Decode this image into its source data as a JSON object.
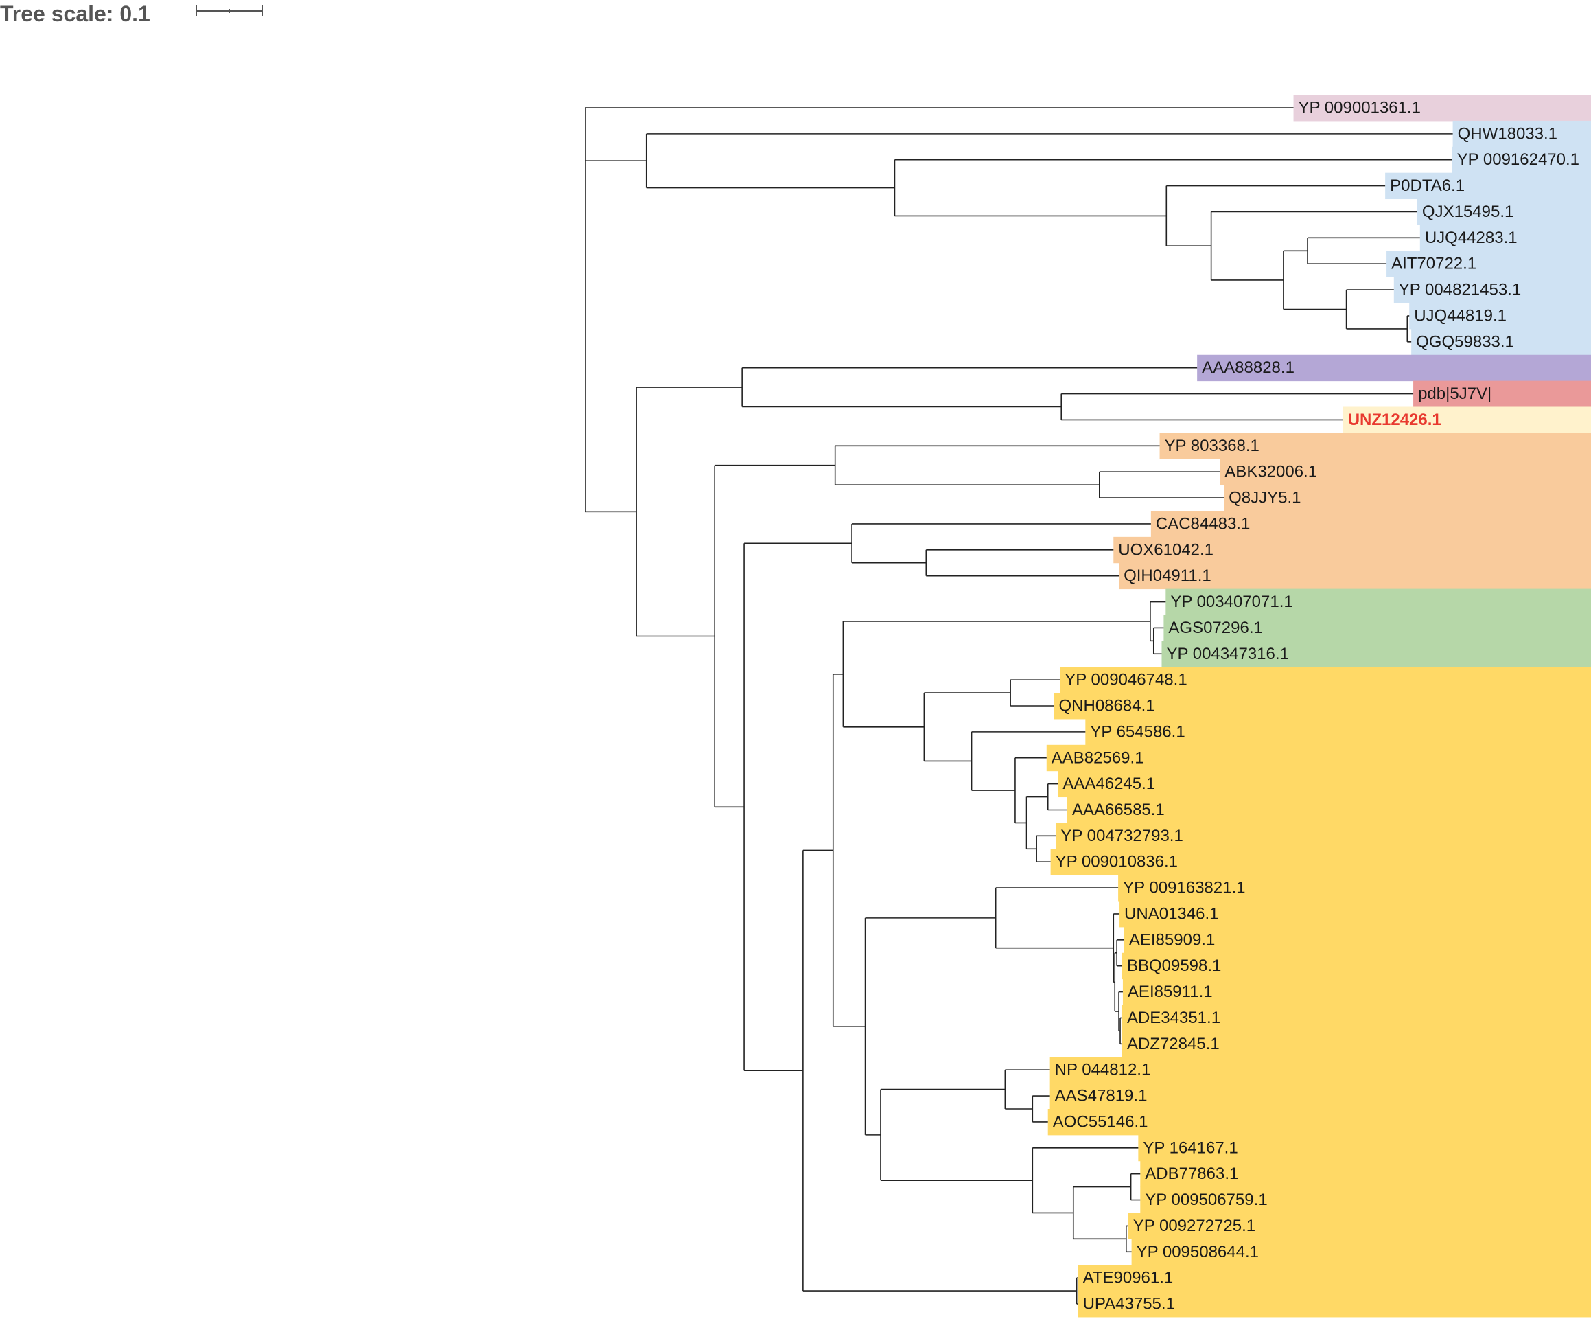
{
  "scale": {
    "label": "Tree scale: 0.1",
    "value": 0.1
  },
  "clade_colors": {
    "pink": "#e8d0dc",
    "blue": "#cfe2f3",
    "purple": "#b4a7d6",
    "red": "#ea9999",
    "cream": "#fff2cc",
    "orange": "#f9cb9c",
    "green": "#b6d7a8",
    "yellow": "#ffd966"
  },
  "highlight_text_color": "#e8392f",
  "leaves": [
    {
      "label": "YP 009001361.1",
      "clade": "pink"
    },
    {
      "label": "QHW18033.1",
      "clade": "blue"
    },
    {
      "label": "YP 009162470.1",
      "clade": "blue"
    },
    {
      "label": "P0DTA6.1",
      "clade": "blue"
    },
    {
      "label": "QJX15495.1",
      "clade": "blue"
    },
    {
      "label": "UJQ44283.1",
      "clade": "blue"
    },
    {
      "label": "AIT70722.1",
      "clade": "blue"
    },
    {
      "label": "YP 004821453.1",
      "clade": "blue"
    },
    {
      "label": "UJQ44819.1",
      "clade": "blue"
    },
    {
      "label": "QGQ59833.1",
      "clade": "blue"
    },
    {
      "label": "AAA88828.1",
      "clade": "purple"
    },
    {
      "label": "pdb|5J7V|",
      "clade": "red"
    },
    {
      "label": "UNZ12426.1",
      "clade": "cream",
      "highlight": true
    },
    {
      "label": "YP 803368.1",
      "clade": "orange"
    },
    {
      "label": "ABK32006.1",
      "clade": "orange"
    },
    {
      "label": "Q8JJY5.1",
      "clade": "orange"
    },
    {
      "label": "CAC84483.1",
      "clade": "orange"
    },
    {
      "label": "UOX61042.1",
      "clade": "orange"
    },
    {
      "label": "QIH04911.1",
      "clade": "orange"
    },
    {
      "label": "YP 003407071.1",
      "clade": "green"
    },
    {
      "label": "AGS07296.1",
      "clade": "green"
    },
    {
      "label": "YP 004347316.1",
      "clade": "green"
    },
    {
      "label": "YP 009046748.1",
      "clade": "yellow"
    },
    {
      "label": "QNH08684.1",
      "clade": "yellow"
    },
    {
      "label": "YP 654586.1",
      "clade": "yellow"
    },
    {
      "label": "AAB82569.1",
      "clade": "yellow"
    },
    {
      "label": "AAA46245.1",
      "clade": "yellow"
    },
    {
      "label": "AAA66585.1",
      "clade": "yellow"
    },
    {
      "label": "YP 004732793.1",
      "clade": "yellow"
    },
    {
      "label": "YP 009010836.1",
      "clade": "yellow"
    },
    {
      "label": "YP 009163821.1",
      "clade": "yellow"
    },
    {
      "label": "UNA01346.1",
      "clade": "yellow"
    },
    {
      "label": "AEI85909.1",
      "clade": "yellow"
    },
    {
      "label": "BBQ09598.1",
      "clade": "yellow"
    },
    {
      "label": "AEI85911.1",
      "clade": "yellow"
    },
    {
      "label": "ADE34351.1",
      "clade": "yellow"
    },
    {
      "label": "ADZ72845.1",
      "clade": "yellow"
    },
    {
      "label": "NP 044812.1",
      "clade": "yellow"
    },
    {
      "label": "AAS47819.1",
      "clade": "yellow"
    },
    {
      "label": "AOC55146.1",
      "clade": "yellow"
    },
    {
      "label": "YP 164167.1",
      "clade": "yellow"
    },
    {
      "label": "ADB77863.1",
      "clade": "yellow"
    },
    {
      "label": "YP 009506759.1",
      "clade": "yellow"
    },
    {
      "label": "YP 009272725.1",
      "clade": "yellow"
    },
    {
      "label": "YP 009508644.1",
      "clade": "yellow"
    },
    {
      "label": "ATE90961.1",
      "clade": "yellow"
    },
    {
      "label": "UPA43755.1",
      "clade": "yellow"
    }
  ],
  "tree": {
    "len": 0,
    "c": [
      {
        "len": 1.058,
        "leaf": 0
      },
      {
        "len": 0.091,
        "c": [
          {
            "len": 1.205,
            "leaf": 1
          },
          {
            "len": 0.371,
            "c": [
              {
                "len": 0.833,
                "leaf": 2
              },
              {
                "len": 0.406,
                "c": [
                  {
                    "len": 0.327,
                    "leaf": 3
                  },
                  {
                    "len": 0.067,
                    "c": [
                      {
                        "len": 0.308,
                        "leaf": 4
                      },
                      {
                        "len": 0.108,
                        "c": [
                          {
                            "len": 0.036,
                            "c": [
                              {
                                "len": 0.168,
                                "leaf": 5
                              },
                              {
                                "len": 0.118,
                                "leaf": 6
                              }
                            ]
                          },
                          {
                            "len": 0.094,
                            "c": [
                              {
                                "len": 0.071,
                                "leaf": 7
                              },
                              {
                                "len": 0.091,
                                "c": [
                                  {
                                    "len": 0.003,
                                    "leaf": 8
                                  },
                                  {
                                    "len": 0.006,
                                    "leaf": 9
                                  }
                                ]
                              }
                            ]
                          }
                        ]
                      }
                    ]
                  }
                ]
              }
            ]
          }
        ]
      },
      {
        "len": 0.076,
        "c": [
          {
            "len": 0.158,
            "c": [
              {
                "len": 0.68,
                "leaf": 10
              },
              {
                "len": 0.477,
                "c": [
                  {
                    "len": 0.526,
                    "leaf": 11
                  },
                  {
                    "len": 0.421,
                    "leaf": 12
                  }
                ]
              }
            ]
          },
          {
            "len": 0.117,
            "c": [
              {
                "len": 0.18,
                "c": [
                  {
                    "len": 0.485,
                    "leaf": 13
                  },
                  {
                    "len": 0.395,
                    "c": [
                      {
                        "len": 0.18,
                        "leaf": 14
                      },
                      {
                        "len": 0.186,
                        "leaf": 15
                      }
                    ]
                  }
                ]
              },
              {
                "len": 0.044,
                "c": [
                  {
                    "len": 0.161,
                    "c": [
                      {
                        "len": 0.447,
                        "leaf": 16
                      },
                      {
                        "len": 0.111,
                        "c": [
                          {
                            "len": 0.28,
                            "leaf": 17
                          },
                          {
                            "len": 0.288,
                            "leaf": 18
                          }
                        ]
                      }
                    ]
                  },
                  {
                    "len": 0.088,
                    "c": [
                      {
                        "len": 0.045,
                        "c": [
                          {
                            "len": 0.015,
                            "c": [
                              {
                                "len": 0.459,
                                "c": [
                                  {
                                    "len": 0.023,
                                    "leaf": 19
                                  },
                                  {
                                    "len": 0.005,
                                    "c": [
                                      {
                                        "len": 0.015,
                                        "leaf": 20
                                      },
                                      {
                                        "len": 0.012,
                                        "leaf": 21
                                      }
                                    ]
                                  }
                                ]
                              },
                              {
                                "len": 0.121,
                                "c": [
                                  {
                                    "len": 0.129,
                                    "c": [
                                      {
                                        "len": 0.074,
                                        "leaf": 22
                                      },
                                      {
                                        "len": 0.065,
                                        "leaf": 23
                                      }
                                    ]
                                  },
                                  {
                                    "len": 0.071,
                                    "c": [
                                      {
                                        "len": 0.17,
                                        "leaf": 24
                                      },
                                      {
                                        "len": 0.065,
                                        "c": [
                                          {
                                            "len": 0.047,
                                            "leaf": 25
                                          },
                                          {
                                            "len": 0.017,
                                            "c": [
                                              {
                                                "len": 0.032,
                                                "c": [
                                                  {
                                                    "len": 0.015,
                                                    "leaf": 26
                                                  },
                                                  {
                                                    "len": 0.029,
                                                    "leaf": 27
                                                  }
                                                ]
                                              },
                                              {
                                                "len": 0.015,
                                                "c": [
                                                  {
                                                    "len": 0.029,
                                                    "leaf": 28
                                                  },
                                                  {
                                                    "len": 0.021,
                                                    "leaf": 29
                                                  }
                                                ]
                                              }
                                            ]
                                          }
                                        ]
                                      }
                                    ]
                                  }
                                ]
                              }
                            ]
                          },
                          {
                            "len": 0.048,
                            "c": [
                              {
                                "len": 0.195,
                                "c": [
                                  {
                                    "len": 0.183,
                                    "leaf": 30
                                  },
                                  {
                                    "len": 0.176,
                                    "c": [
                                      {
                                        "len": 0.009,
                                        "leaf": 31
                                      },
                                      {
                                        "len": 0.002,
                                        "c": [
                                          {
                                            "len": 0.003,
                                            "c": [
                                              {
                                                "len": 0.011,
                                                "leaf": 32
                                              },
                                              {
                                                "len": 0.008,
                                                "leaf": 33
                                              }
                                            ]
                                          },
                                          {
                                            "len": 0.006,
                                            "c": [
                                              {
                                                "len": 0.006,
                                                "leaf": 34
                                              },
                                              {
                                                "len": 0.002,
                                                "c": [
                                                  {
                                                    "len": 0.003,
                                                    "leaf": 35
                                                  },
                                                  {
                                                    "len": 0.003,
                                                    "leaf": 36
                                                  }
                                                ]
                                              }
                                            ]
                                          }
                                        ]
                                      }
                                    ]
                                  }
                                ]
                              },
                              {
                                "len": 0.023,
                                "c": [
                                  {
                                    "len": 0.186,
                                    "c": [
                                      {
                                        "len": 0.067,
                                        "leaf": 37
                                      },
                                      {
                                        "len": 0.041,
                                        "c": [
                                          {
                                            "len": 0.026,
                                            "leaf": 38
                                          },
                                          {
                                            "len": 0.023,
                                            "leaf": 39
                                          }
                                        ]
                                      }
                                    ]
                                  },
                                  {
                                    "len": 0.227,
                                    "c": [
                                      {
                                        "len": 0.158,
                                        "leaf": 40
                                      },
                                      {
                                        "len": 0.061,
                                        "c": [
                                          {
                                            "len": 0.086,
                                            "c": [
                                              {
                                                "len": 0.014,
                                                "leaf": 41
                                              },
                                              {
                                                "len": 0.014,
                                                "leaf": 42
                                              }
                                            ]
                                          },
                                          {
                                            "len": 0.079,
                                            "c": [
                                              {
                                                "len": 0.003,
                                                "leaf": 43
                                              },
                                              {
                                                "len": 0.008,
                                                "leaf": 44
                                              }
                                            ]
                                          }
                                        ]
                                      }
                                    ]
                                  }
                                ]
                              }
                            ]
                          }
                        ]
                      },
                      {
                        "len": 0.409,
                        "c": [
                          {
                            "len": 0.002,
                            "leaf": 45
                          },
                          {
                            "len": 0.002,
                            "leaf": 46
                          }
                        ]
                      }
                    ]
                  }
                ]
              }
            ]
          }
        ]
      }
    ]
  }
}
